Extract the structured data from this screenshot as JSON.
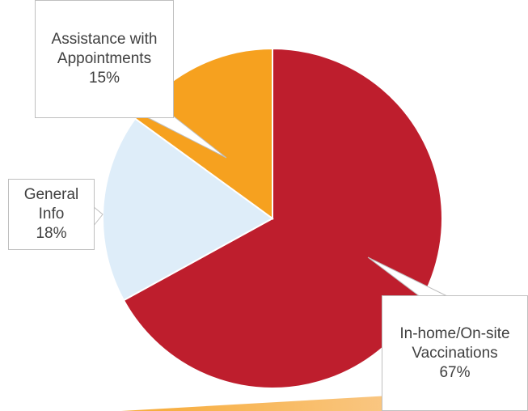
{
  "chart_data": {
    "type": "pie",
    "categories": [
      "In-home/On-site Vaccinations",
      "General Info",
      "Assistance with Appointments"
    ],
    "values": [
      67,
      18,
      15
    ],
    "value_labels": [
      "67%",
      "18%",
      "15%"
    ],
    "colors": [
      "#be1e2d",
      "#deedf9",
      "#f6a11f"
    ]
  }
}
